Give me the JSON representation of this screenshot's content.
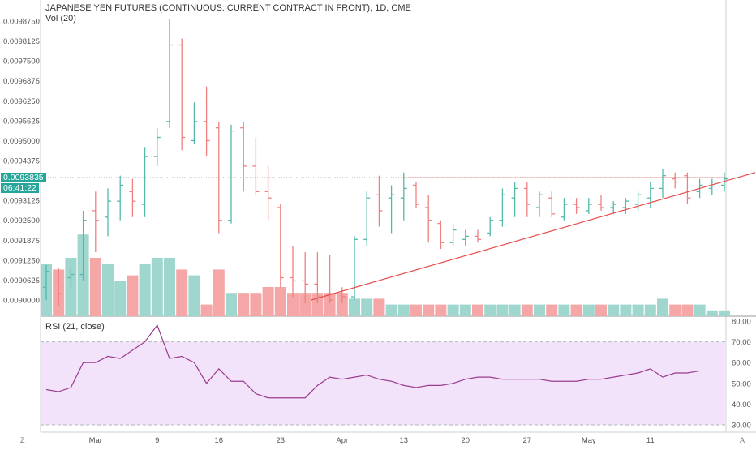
{
  "title": "JAPANESE YEN FUTURES (CONTINUOUS: CURRENT CONTRACT IN FRONT), 1D, CME",
  "volume_label": "Vol (20)",
  "rsi_label": "RSI (21, close)",
  "last_price_label": "0.0093835",
  "countdown_label": "06:41:22",
  "corner_left": "Z",
  "corner_right": "A",
  "colors": {
    "up": "#53b9a8",
    "down": "#f08080",
    "vol_up": "#9fd6cd",
    "vol_down": "#f5a6a6",
    "trendline": "#e84c4c",
    "rsi_line": "#9a3b8e",
    "rsi_band": "#f2e3fb",
    "price_line": "#444444",
    "last_label_bg": "#26a69a",
    "axis_text": "#555555"
  },
  "chart_data": [
    {
      "type": "ohlc",
      "title": "JAPANESE YEN FUTURES (CONTINUOUS: CURRENT CONTRACT IN FRONT), 1D, CME",
      "y_ticks": [
        "0.0098750",
        "0.0098125",
        "0.0097500",
        "0.0096875",
        "0.0096250",
        "0.0095625",
        "0.0095000",
        "0.0094375",
        "0.0093125",
        "0.0092500",
        "0.0091875",
        "0.0091250",
        "0.0090625",
        "0.0090000"
      ],
      "ylim": [
        0.00897,
        0.00992
      ],
      "x_ticks": [
        "Mar",
        "9",
        "16",
        "23",
        "Apr",
        "13",
        "20",
        "27",
        "May",
        "11"
      ],
      "x_tick_index": [
        4,
        9,
        14,
        19,
        24,
        29,
        34,
        39,
        44,
        49
      ],
      "last_price": 0.0093835,
      "bars": [
        {
          "o": 0.00904,
          "h": 0.00911,
          "l": 0.009,
          "c": 0.00909
        },
        {
          "o": 0.00906,
          "h": 0.0091,
          "l": 0.00898,
          "c": 0.00902
        },
        {
          "o": 0.00907,
          "h": 0.0091,
          "l": 0.00904,
          "c": 0.00908
        },
        {
          "o": 0.00908,
          "h": 0.00928,
          "l": 0.00906,
          "c": 0.00925
        },
        {
          "o": 0.00928,
          "h": 0.00934,
          "l": 0.00915,
          "c": 0.00925
        },
        {
          "o": 0.00926,
          "h": 0.00935,
          "l": 0.0092,
          "c": 0.00931
        },
        {
          "o": 0.00931,
          "h": 0.00939,
          "l": 0.00925,
          "c": 0.00936
        },
        {
          "o": 0.00934,
          "h": 0.00938,
          "l": 0.00926,
          "c": 0.00931
        },
        {
          "o": 0.0093,
          "h": 0.00948,
          "l": 0.00926,
          "c": 0.00945
        },
        {
          "o": 0.00945,
          "h": 0.00954,
          "l": 0.00942,
          "c": 0.00951
        },
        {
          "o": 0.00956,
          "h": 0.00988,
          "l": 0.00954,
          "c": 0.0098
        },
        {
          "o": 0.0098,
          "h": 0.00982,
          "l": 0.00947,
          "c": 0.00951
        },
        {
          "o": 0.0095,
          "h": 0.00962,
          "l": 0.00949,
          "c": 0.00956
        },
        {
          "o": 0.00956,
          "h": 0.00967,
          "l": 0.00945,
          "c": 0.0095
        },
        {
          "o": 0.00954,
          "h": 0.00956,
          "l": 0.00921,
          "c": 0.00925
        },
        {
          "o": 0.00925,
          "h": 0.00955,
          "l": 0.00924,
          "c": 0.00953
        },
        {
          "o": 0.00954,
          "h": 0.00956,
          "l": 0.00934,
          "c": 0.00942
        },
        {
          "o": 0.00942,
          "h": 0.00951,
          "l": 0.00933,
          "c": 0.00934
        },
        {
          "o": 0.00934,
          "h": 0.00942,
          "l": 0.00925,
          "c": 0.00932
        },
        {
          "o": 0.00929,
          "h": 0.0093,
          "l": 0.00904,
          "c": 0.00907
        },
        {
          "o": 0.00907,
          "h": 0.00917,
          "l": 0.00901,
          "c": 0.00906
        },
        {
          "o": 0.00906,
          "h": 0.00915,
          "l": 0.00899,
          "c": 0.00905
        },
        {
          "o": 0.00905,
          "h": 0.00915,
          "l": 0.00899,
          "c": 0.00901
        },
        {
          "o": 0.00902,
          "h": 0.00914,
          "l": 0.00899,
          "c": 0.009
        },
        {
          "o": 0.00902,
          "h": 0.00904,
          "l": 0.00899,
          "c": 0.00901
        },
        {
          "o": 0.00901,
          "h": 0.0092,
          "l": 0.009,
          "c": 0.00919
        },
        {
          "o": 0.00919,
          "h": 0.00934,
          "l": 0.00917,
          "c": 0.00932
        },
        {
          "o": 0.00933,
          "h": 0.00939,
          "l": 0.00923,
          "c": 0.00928
        },
        {
          "o": 0.00932,
          "h": 0.00936,
          "l": 0.00921,
          "c": 0.00933
        },
        {
          "o": 0.00932,
          "h": 0.0094,
          "l": 0.00925,
          "c": 0.00935
        },
        {
          "o": 0.00936,
          "h": 0.00937,
          "l": 0.00929,
          "c": 0.0093
        },
        {
          "o": 0.00929,
          "h": 0.00933,
          "l": 0.00918,
          "c": 0.00925
        },
        {
          "o": 0.00924,
          "h": 0.00925,
          "l": 0.00916,
          "c": 0.00918
        },
        {
          "o": 0.00918,
          "h": 0.00924,
          "l": 0.00917,
          "c": 0.00922
        },
        {
          "o": 0.00919,
          "h": 0.00922,
          "l": 0.00917,
          "c": 0.0092
        },
        {
          "o": 0.0092,
          "h": 0.00922,
          "l": 0.00918,
          "c": 0.00919
        },
        {
          "o": 0.00921,
          "h": 0.00926,
          "l": 0.0092,
          "c": 0.00925
        },
        {
          "o": 0.00925,
          "h": 0.00935,
          "l": 0.00923,
          "c": 0.00933
        },
        {
          "o": 0.00932,
          "h": 0.00937,
          "l": 0.00926,
          "c": 0.00935
        },
        {
          "o": 0.00935,
          "h": 0.00937,
          "l": 0.00926,
          "c": 0.0093
        },
        {
          "o": 0.00929,
          "h": 0.00934,
          "l": 0.00926,
          "c": 0.00933
        },
        {
          "o": 0.00932,
          "h": 0.00934,
          "l": 0.00926,
          "c": 0.00927
        },
        {
          "o": 0.00926,
          "h": 0.00932,
          "l": 0.00925,
          "c": 0.0093
        },
        {
          "o": 0.0093,
          "h": 0.00932,
          "l": 0.00927,
          "c": 0.00929
        },
        {
          "o": 0.00928,
          "h": 0.00932,
          "l": 0.00927,
          "c": 0.0093
        },
        {
          "o": 0.0093,
          "h": 0.00933,
          "l": 0.00928,
          "c": 0.00929
        },
        {
          "o": 0.00929,
          "h": 0.00931,
          "l": 0.00927,
          "c": 0.0093
        },
        {
          "o": 0.00929,
          "h": 0.00932,
          "l": 0.00927,
          "c": 0.00931
        },
        {
          "o": 0.0093,
          "h": 0.00934,
          "l": 0.00928,
          "c": 0.00933
        },
        {
          "o": 0.00932,
          "h": 0.00937,
          "l": 0.00929,
          "c": 0.00935
        },
        {
          "o": 0.00935,
          "h": 0.00941,
          "l": 0.00932,
          "c": 0.00939
        },
        {
          "o": 0.00938,
          "h": 0.0094,
          "l": 0.00935,
          "c": 0.00937
        },
        {
          "o": 0.00939,
          "h": 0.0094,
          "l": 0.0093,
          "c": 0.00932
        },
        {
          "o": 0.00934,
          "h": 0.00938,
          "l": 0.00932,
          "c": 0.00936
        },
        {
          "o": 0.00935,
          "h": 0.00938,
          "l": 0.00933,
          "c": 0.00937
        },
        {
          "o": 0.00936,
          "h": 0.0094,
          "l": 0.00934,
          "c": 0.00938
        }
      ],
      "volume": [
        9,
        8,
        10,
        14,
        10,
        9,
        6,
        7,
        9,
        10,
        10,
        8,
        7,
        2,
        8,
        4,
        4,
        4,
        5,
        5,
        4,
        4,
        4,
        4,
        4,
        3,
        3,
        3,
        2,
        2,
        2,
        2,
        2,
        2,
        2,
        2,
        2,
        2,
        2,
        2,
        2,
        2,
        2,
        2,
        2,
        2,
        2,
        2,
        2,
        2,
        3,
        2,
        2,
        2,
        1,
        1
      ],
      "trendline": [
        {
          "i": 21.5,
          "v": 0.009
        },
        {
          "i": 57.5,
          "v": 0.0094
        }
      ]
    },
    {
      "type": "line",
      "title": "RSI (21, close)",
      "y_ticks": [
        "80.00",
        "70.00",
        "60.00",
        "50.00",
        "40.00",
        "30.00"
      ],
      "ylim": [
        28,
        80
      ],
      "band": [
        30,
        70
      ],
      "series": [
        {
          "values": [
            47,
            46,
            48,
            60,
            60,
            63,
            62,
            66,
            70,
            78,
            62,
            63,
            60,
            50,
            57,
            51,
            51,
            45,
            43,
            43,
            43,
            43,
            49,
            53,
            52,
            53,
            54,
            52,
            51,
            49,
            48,
            49,
            49,
            50,
            52,
            53,
            53,
            52,
            52,
            52,
            52,
            51,
            51,
            51,
            52,
            52,
            53,
            54,
            55,
            57,
            53,
            55,
            55,
            56
          ]
        }
      ]
    }
  ]
}
